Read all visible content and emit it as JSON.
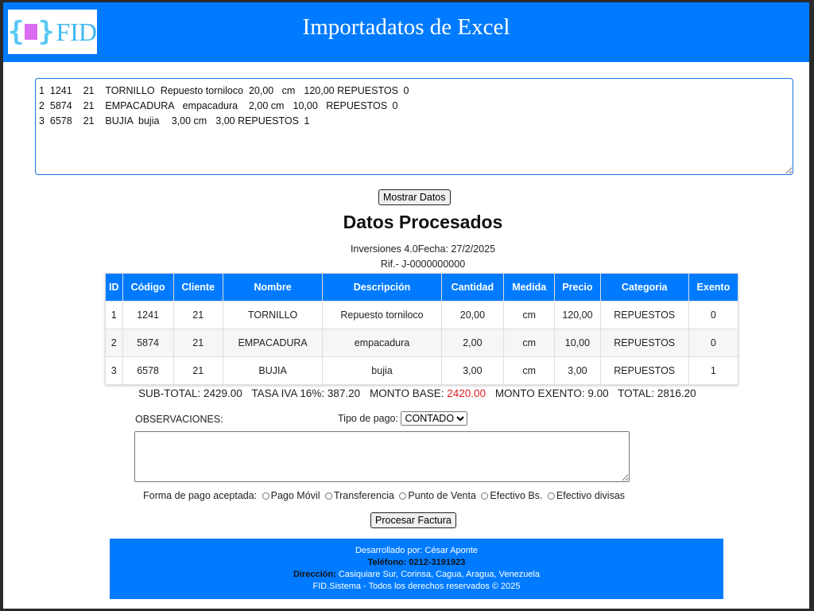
{
  "header": {
    "title": "Importadatos de Excel",
    "logo_text": "FID"
  },
  "input": {
    "raw": "1\t1241\t21\tTORNILLO\tRepuesto torniloco\t20,00\tcm\t120,00\tREPUESTOS\t0\n2\t5874\t21\tEMPACADURA\tempacadura\t2,00\tcm\t10,00\tREPUESTOS\t0\n3\t6578\t21\tBUJIA\tbujia\t3,00\tcm\t3,00\tREPUESTOS\t1"
  },
  "show_button": "Mostrar Datos",
  "section": {
    "title": "Datos Procesados",
    "company": "Inversiones 4.0Fecha: 27/2/2025",
    "rif": "Rif.- J-0000000000"
  },
  "table": {
    "headers": [
      "ID",
      "Código",
      "Cliente",
      "Nombre",
      "Descripción",
      "Cantidad",
      "Medida",
      "Precio",
      "Categoria",
      "Exento"
    ],
    "rows": [
      [
        "1",
        "1241",
        "21",
        "TORNILLO",
        "Repuesto torniloco",
        "20,00",
        "cm",
        "120,00",
        "REPUESTOS",
        "0"
      ],
      [
        "2",
        "5874",
        "21",
        "EMPACADURA",
        "empacadura",
        "2,00",
        "cm",
        "10,00",
        "REPUESTOS",
        "0"
      ],
      [
        "3",
        "6578",
        "21",
        "BUJIA",
        "bujia",
        "3,00",
        "cm",
        "3,00",
        "REPUESTOS",
        "1"
      ]
    ]
  },
  "totals": {
    "subtotal": "SUB-TOTAL: 2429.00",
    "iva": "TASA IVA 16%: 387.20",
    "base_label": "MONTO BASE: ",
    "base_value": "2420.00",
    "exento": "MONTO EXENTO: 9.00",
    "total": "TOTAL: 2816.20",
    "accent": "#e02020"
  },
  "form": {
    "obs_label": "OBSERVACIONES:",
    "tipo_label": "Tipo de pago:",
    "tipo_value": "CONTADO",
    "forma_label": "Forma de pago aceptada:",
    "options": [
      "Pago Móvil",
      "Transferencia",
      "Punto de Venta",
      "Efectivo Bs.",
      "Efectivo divisas"
    ],
    "submit": "Procesar Factura"
  },
  "footer": {
    "dev": "Desarrollado por: César Aponte",
    "phone": "Teléfono: 0212-3191923",
    "addr_label": "Dirección:",
    "addr": " Casiquiare Sur, Corinsa, Cagua, Aragua, Venezuela",
    "copy": "FID.Sistema - Todos los derechos reservados © 2025"
  },
  "colors": {
    "primary": "#007bff"
  }
}
